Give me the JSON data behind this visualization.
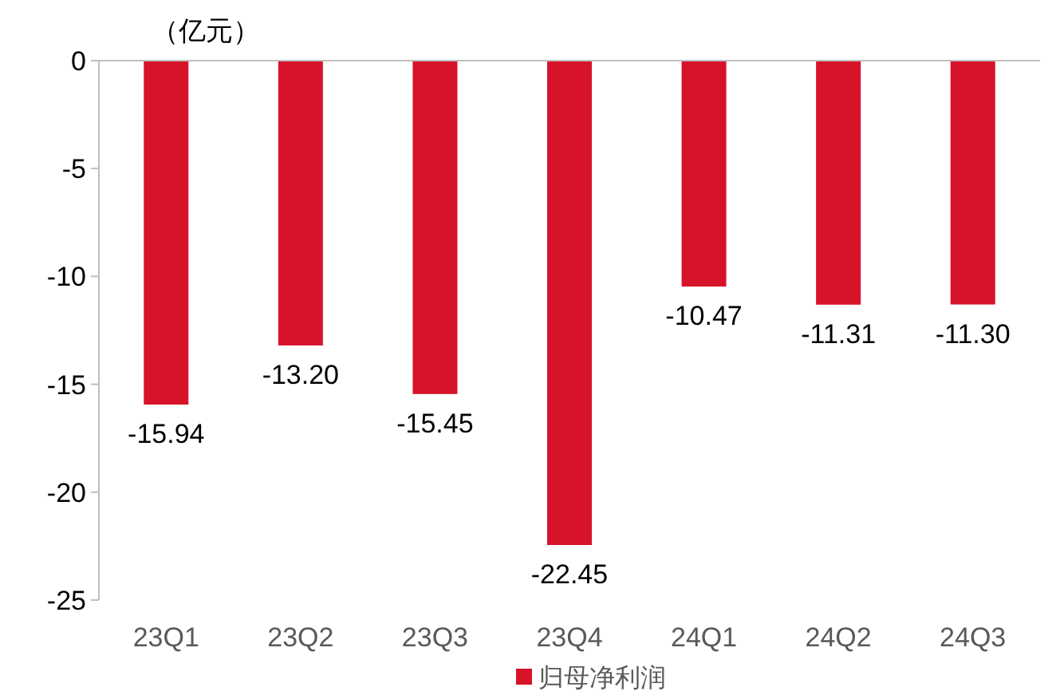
{
  "chart_data": {
    "type": "bar",
    "ylabel": "（亿元）",
    "categories": [
      "23Q1",
      "23Q2",
      "23Q3",
      "23Q4",
      "24Q1",
      "24Q2",
      "24Q3"
    ],
    "series": [
      {
        "name": "归母净利润",
        "color": "#d7132a",
        "values": [
          -15.94,
          -13.2,
          -15.45,
          -22.45,
          -10.47,
          -11.31,
          -11.3
        ],
        "value_labels": [
          "-15.94",
          "-13.20",
          "-15.45",
          "-22.45",
          "-10.47",
          "-11.31",
          "-11.30"
        ]
      }
    ],
    "ylim": [
      -25,
      0
    ],
    "yticks": [
      -25,
      -20,
      -15,
      -10,
      -5,
      0
    ],
    "grid": false,
    "legend": "bottom"
  }
}
